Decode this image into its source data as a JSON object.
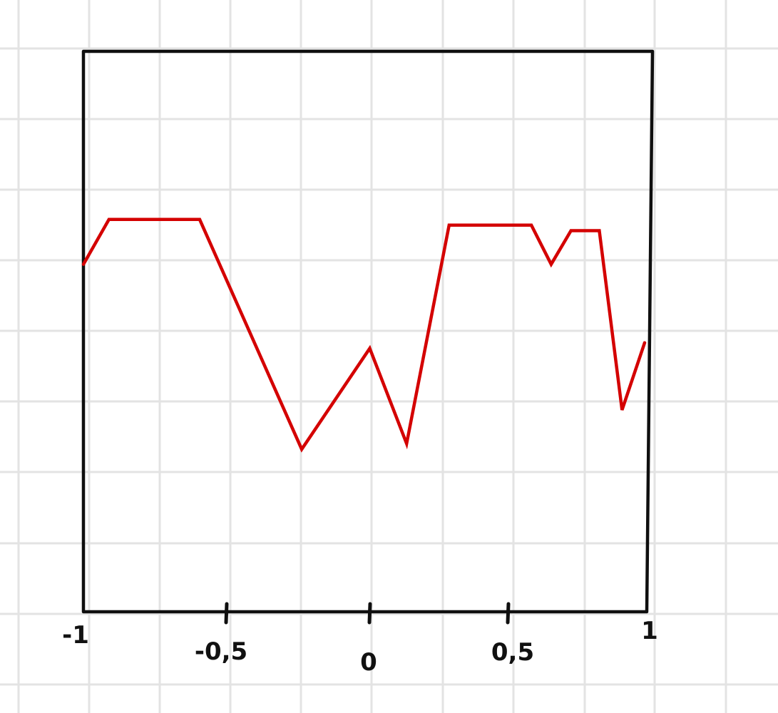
{
  "colors": {
    "grid": "#e3e3e3",
    "frame": "#0f0f0f",
    "series": "#d40000",
    "background": "#ffffff"
  },
  "chart_data": {
    "type": "line",
    "title": "",
    "xlabel": "",
    "ylabel": "",
    "xlim": [
      -1,
      1
    ],
    "ylim": [
      0,
      1
    ],
    "grid": true,
    "legend": "none",
    "x_ticks": [
      {
        "value": -1,
        "label": "-1"
      },
      {
        "value": -0.5,
        "label": "-0,5"
      },
      {
        "value": 0,
        "label": "0"
      },
      {
        "value": 0.5,
        "label": "0,5"
      },
      {
        "value": 1,
        "label": "1"
      }
    ],
    "series": [
      {
        "x": [
          -1,
          -0.91,
          -0.59,
          -0.23,
          0.01,
          0.14,
          0.29,
          0.58,
          0.65,
          0.72,
          0.82,
          0.9,
          0.98
        ],
        "y": [
          0.62,
          0.7,
          0.7,
          0.29,
          0.47,
          0.3,
          0.69,
          0.69,
          0.62,
          0.68,
          0.68,
          0.36,
          0.48
        ]
      }
    ]
  }
}
